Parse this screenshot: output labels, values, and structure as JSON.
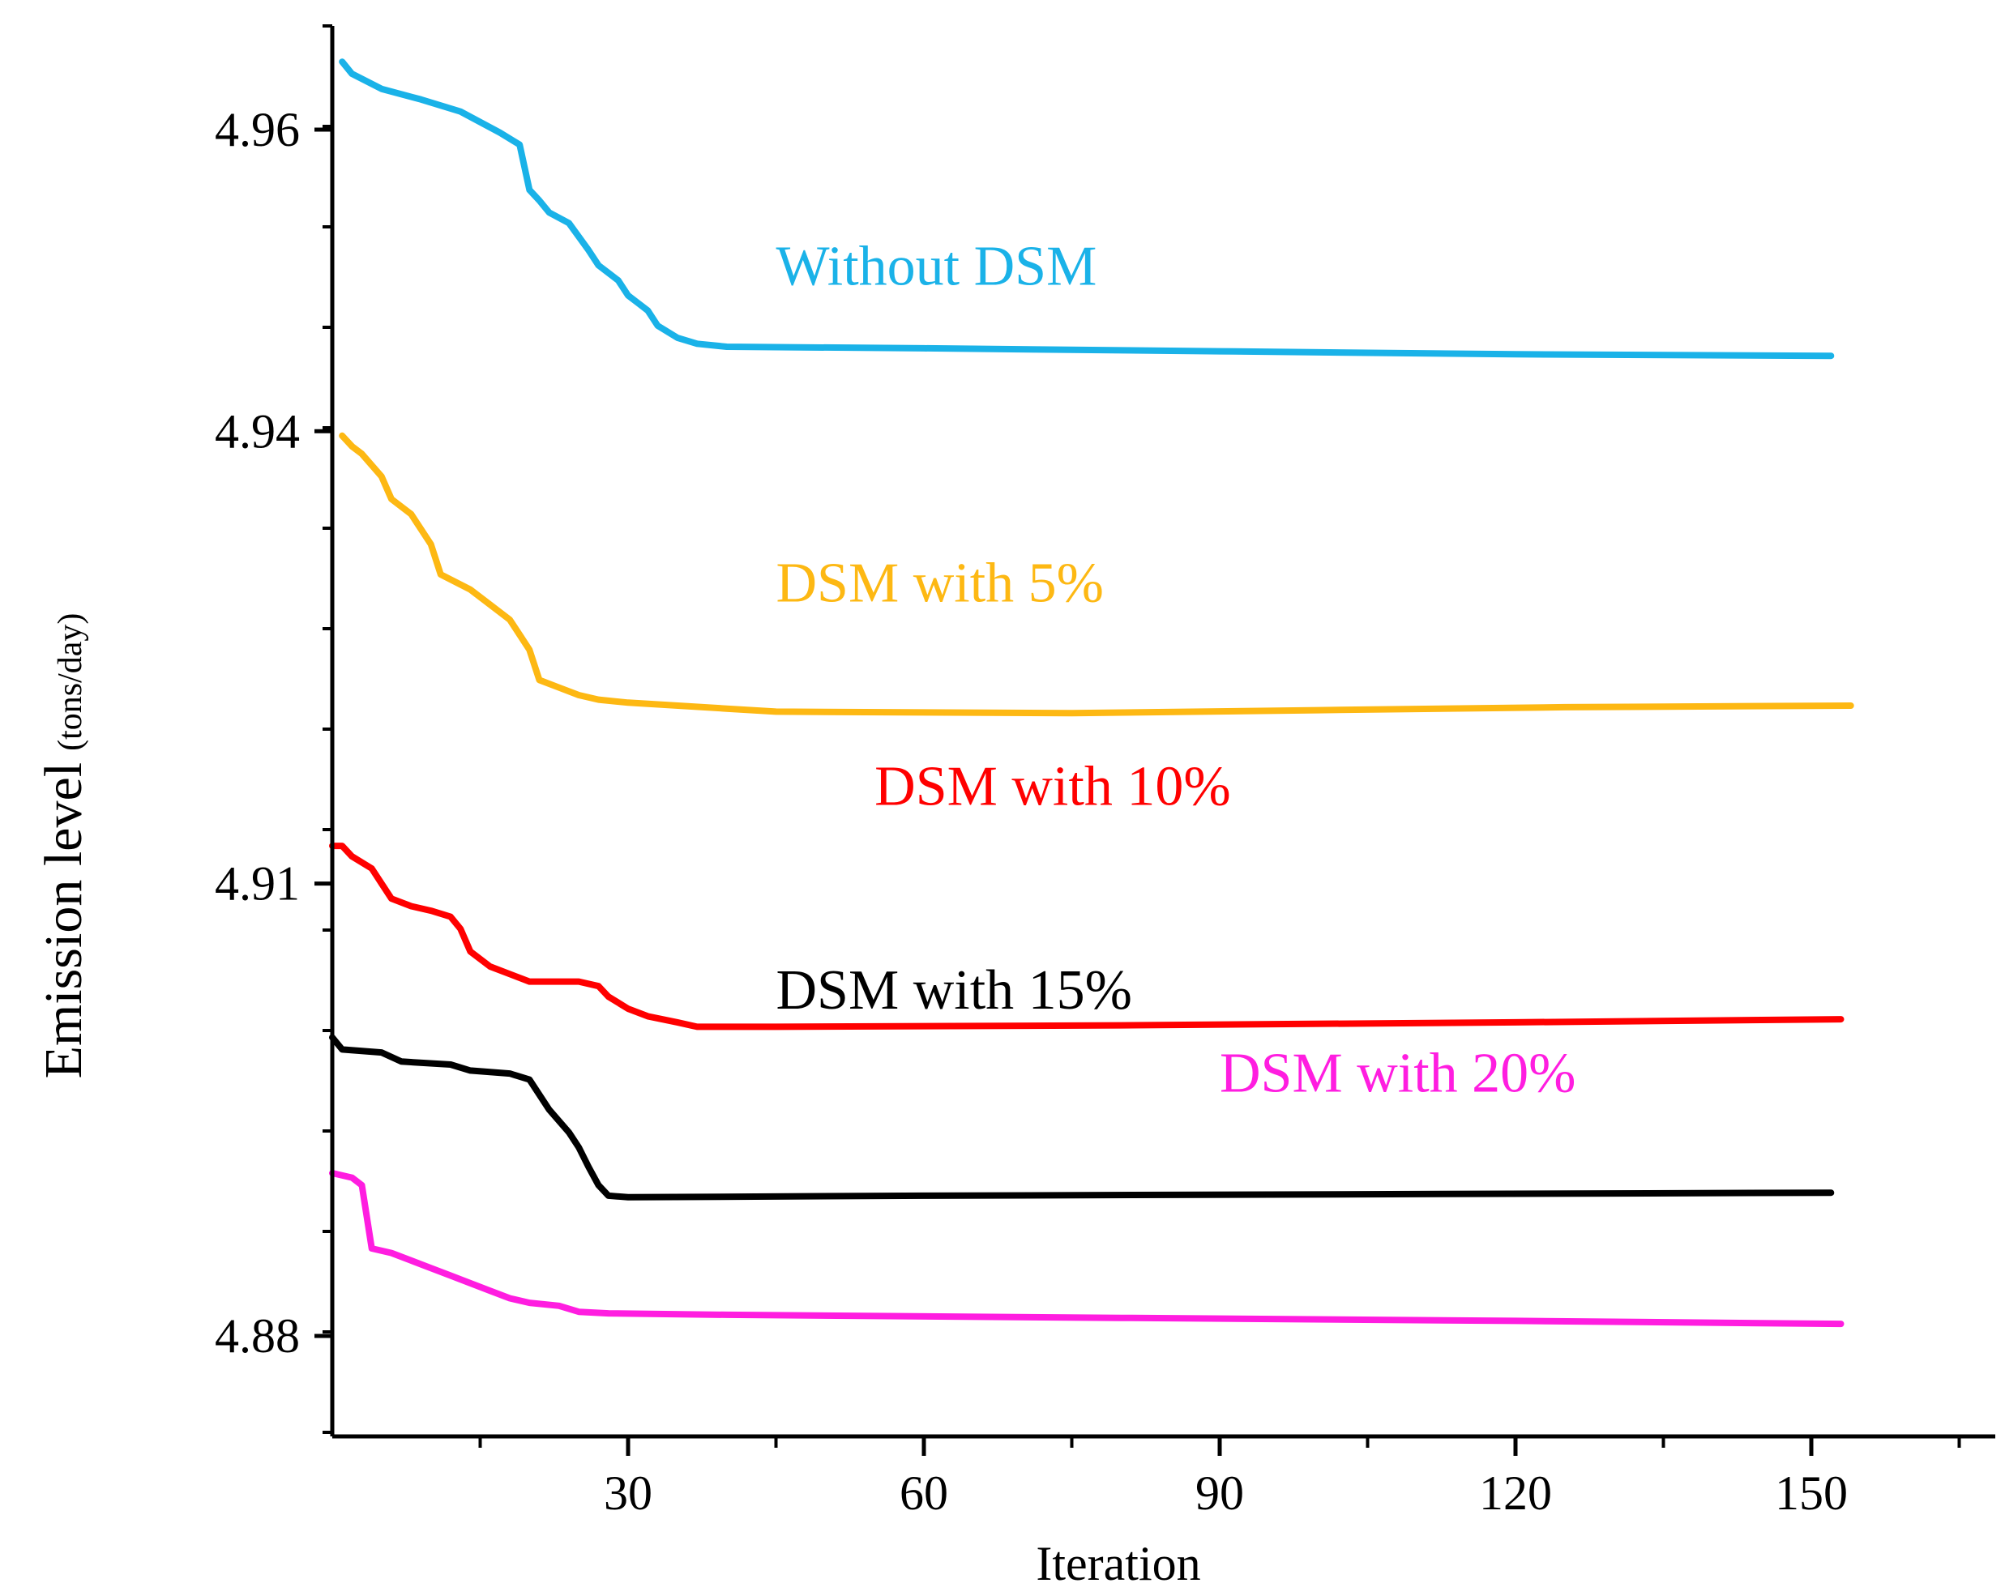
{
  "chart_data": {
    "type": "line",
    "title": "",
    "xlabel": "Iteration",
    "ylabel": "Emission level",
    "ylabel_unit": "(tons/day)",
    "xlim": [
      0,
      165
    ],
    "ylim": [
      4.871,
      4.967
    ],
    "xticks": [
      30,
      60,
      90,
      120,
      150
    ],
    "xtick_labels": [
      "30",
      "60",
      "90",
      "120",
      "150"
    ],
    "yticks": [
      4.96,
      4.94,
      4.91,
      4.88
    ],
    "ytick_labels": [
      "4.96",
      "4.94",
      "4.91",
      "4.88"
    ],
    "grid": false,
    "legend": "none (series labelled inline)",
    "series": [
      {
        "name": "Without DSM",
        "label": "Without DSM",
        "color": "#1ab2e8",
        "label_anchor": [
          45,
          4.951
        ],
        "points": [
          [
            1,
            4.9645
          ],
          [
            2,
            4.9637
          ],
          [
            5,
            4.9627
          ],
          [
            9,
            4.962
          ],
          [
            13,
            4.9612
          ],
          [
            15,
            4.9605
          ],
          [
            17,
            4.9598
          ],
          [
            19,
            4.959
          ],
          [
            20,
            4.956
          ],
          [
            21,
            4.9553
          ],
          [
            22,
            4.9545
          ],
          [
            24,
            4.9538
          ],
          [
            26,
            4.952
          ],
          [
            27,
            4.951
          ],
          [
            28,
            4.9505
          ],
          [
            29,
            4.95
          ],
          [
            30,
            4.949
          ],
          [
            31,
            4.9485
          ],
          [
            32,
            4.948
          ],
          [
            33,
            4.947
          ],
          [
            35,
            4.9462
          ],
          [
            37,
            4.9458
          ],
          [
            40,
            4.9456
          ],
          [
            60,
            4.9455
          ],
          [
            90,
            4.9453
          ],
          [
            120,
            4.9451
          ],
          [
            152,
            4.945
          ]
        ]
      },
      {
        "name": "DSM with 5%",
        "label": "DSM with 5%",
        "color": "#fdb813",
        "label_anchor": [
          45,
          4.93
        ],
        "points": [
          [
            1,
            4.9397
          ],
          [
            2,
            4.939
          ],
          [
            3,
            4.9385
          ],
          [
            5,
            4.937
          ],
          [
            6,
            4.9355
          ],
          [
            8,
            4.9345
          ],
          [
            10,
            4.9325
          ],
          [
            11,
            4.9305
          ],
          [
            14,
            4.9295
          ],
          [
            16,
            4.9285
          ],
          [
            18,
            4.9275
          ],
          [
            19,
            4.9265
          ],
          [
            20,
            4.9255
          ],
          [
            21,
            4.9235
          ],
          [
            23,
            4.923
          ],
          [
            25,
            4.9225
          ],
          [
            27,
            4.9222
          ],
          [
            30,
            4.922
          ],
          [
            40,
            4.9216
          ],
          [
            45,
            4.9214
          ],
          [
            75,
            4.9213
          ],
          [
            100,
            4.9215
          ],
          [
            125,
            4.9217
          ],
          [
            154,
            4.9218
          ]
        ]
      },
      {
        "name": "DSM with 10%",
        "label": "DSM with 10%",
        "color": "#ff0000",
        "label_anchor": [
          55,
          4.9165
        ],
        "points": [
          [
            0,
            4.9125
          ],
          [
            1,
            4.9125
          ],
          [
            2,
            4.9118
          ],
          [
            4,
            4.911
          ],
          [
            5,
            4.91
          ],
          [
            6,
            4.909
          ],
          [
            8,
            4.9085
          ],
          [
            10,
            4.9082
          ],
          [
            12,
            4.9078
          ],
          [
            13,
            4.907
          ],
          [
            14,
            4.9055
          ],
          [
            16,
            4.9045
          ],
          [
            18,
            4.904
          ],
          [
            20,
            4.9035
          ],
          [
            25,
            4.9035
          ],
          [
            27,
            4.9032
          ],
          [
            28,
            4.9025
          ],
          [
            30,
            4.9017
          ],
          [
            32,
            4.9012
          ],
          [
            35,
            4.9008
          ],
          [
            37,
            4.9005
          ],
          [
            45,
            4.9005
          ],
          [
            80,
            4.9006
          ],
          [
            120,
            4.9008
          ],
          [
            153,
            4.901
          ]
        ]
      },
      {
        "name": "DSM with 15%",
        "label": "DSM with 15%",
        "color": "#000000",
        "label_anchor": [
          45,
          4.903
        ],
        "points": [
          [
            0,
            4.8998
          ],
          [
            1,
            4.899
          ],
          [
            5,
            4.8988
          ],
          [
            7,
            4.8982
          ],
          [
            12,
            4.898
          ],
          [
            14,
            4.8976
          ],
          [
            18,
            4.8974
          ],
          [
            20,
            4.897
          ],
          [
            21,
            4.896
          ],
          [
            22,
            4.895
          ],
          [
            24,
            4.8935
          ],
          [
            25,
            4.8925
          ],
          [
            26,
            4.8912
          ],
          [
            27,
            4.89
          ],
          [
            28,
            4.8893
          ],
          [
            30,
            4.8892
          ],
          [
            60,
            4.8893
          ],
          [
            152,
            4.8895
          ]
        ]
      },
      {
        "name": "DSM with 20%",
        "label": "DSM with 20%",
        "color": "#ff1de0",
        "label_anchor": [
          90,
          4.8975
        ],
        "points": [
          [
            0,
            4.8908
          ],
          [
            2,
            4.8905
          ],
          [
            3,
            4.89
          ],
          [
            4,
            4.8858
          ],
          [
            6,
            4.8855
          ],
          [
            8,
            4.885
          ],
          [
            10,
            4.8845
          ],
          [
            12,
            4.884
          ],
          [
            14,
            4.8835
          ],
          [
            16,
            4.883
          ],
          [
            18,
            4.8825
          ],
          [
            20,
            4.8822
          ],
          [
            23,
            4.882
          ],
          [
            25,
            4.8816
          ],
          [
            28,
            4.8815
          ],
          [
            40,
            4.8814
          ],
          [
            80,
            4.8812
          ],
          [
            120,
            4.881
          ],
          [
            153,
            4.8808
          ]
        ]
      }
    ]
  }
}
